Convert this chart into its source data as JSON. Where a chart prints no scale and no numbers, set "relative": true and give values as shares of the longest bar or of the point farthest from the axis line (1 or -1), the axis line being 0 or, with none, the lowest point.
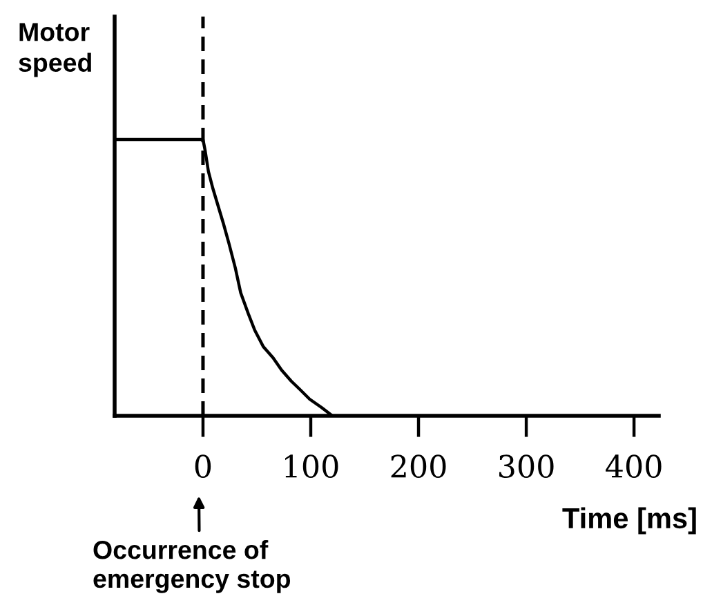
{
  "chart_data": {
    "type": "line",
    "xlabel": "Time [ms]",
    "ylabel": "Motor\nspeed",
    "annotations": [
      "Occurrence of\nemergency stop"
    ],
    "x": [
      -82,
      0,
      2,
      5,
      9,
      14,
      19,
      24,
      30,
      35,
      42,
      48,
      56,
      65,
      73,
      82,
      90,
      99,
      110,
      120
    ],
    "values": [
      1,
      1,
      0.96,
      0.885,
      0.825,
      0.76,
      0.695,
      0.625,
      0.535,
      0.445,
      0.37,
      0.31,
      0.25,
      0.21,
      0.165,
      0.125,
      0.095,
      0.06,
      0.03,
      0
    ],
    "color": "#000000",
    "relative": true,
    "xlim": [
      -82,
      423
    ],
    "xticks": [
      0,
      100,
      200,
      300,
      400
    ],
    "tick_labels": "x",
    "ref_lines": [
      {
        "axis": "x",
        "value": 0,
        "line_style": "dashed"
      }
    ]
  }
}
